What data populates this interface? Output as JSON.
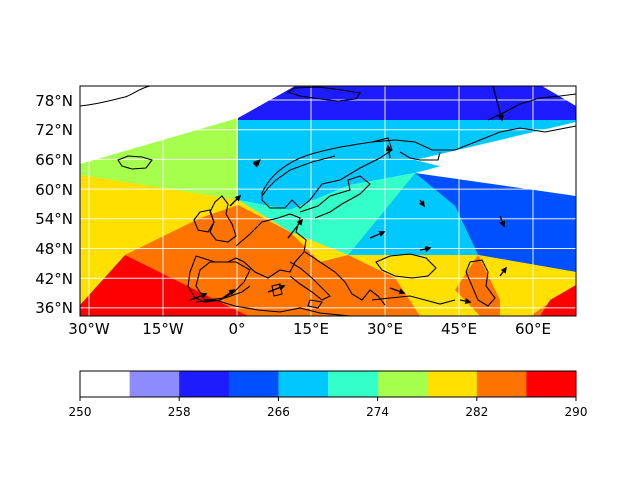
{
  "map": {
    "lat_labels": [
      "78°N",
      "72°N",
      "66°N",
      "60°N",
      "54°N",
      "48°N",
      "42°N",
      "36°N"
    ],
    "lon_labels": [
      "30°W",
      "15°W",
      "0°",
      "15°E",
      "30°E",
      "45°E",
      "60°E"
    ],
    "projection": "cylindrical",
    "gridlines": true,
    "coastlines": true,
    "field": "filled contour with wind vectors"
  },
  "colorbar": {
    "tick_labels": [
      "250",
      "258",
      "266",
      "274",
      "282",
      "290"
    ],
    "levels": [
      250,
      254,
      258,
      262,
      266,
      270,
      274,
      278,
      282,
      286,
      290
    ],
    "colors": [
      "#ffffff",
      "#8c8cff",
      "#1c1cff",
      "#0050ff",
      "#00c8ff",
      "#33ffc8",
      "#a6ff4d",
      "#ffe000",
      "#ff7300",
      "#ff0000"
    ],
    "orientation": "horizontal",
    "extend": "neither"
  }
}
